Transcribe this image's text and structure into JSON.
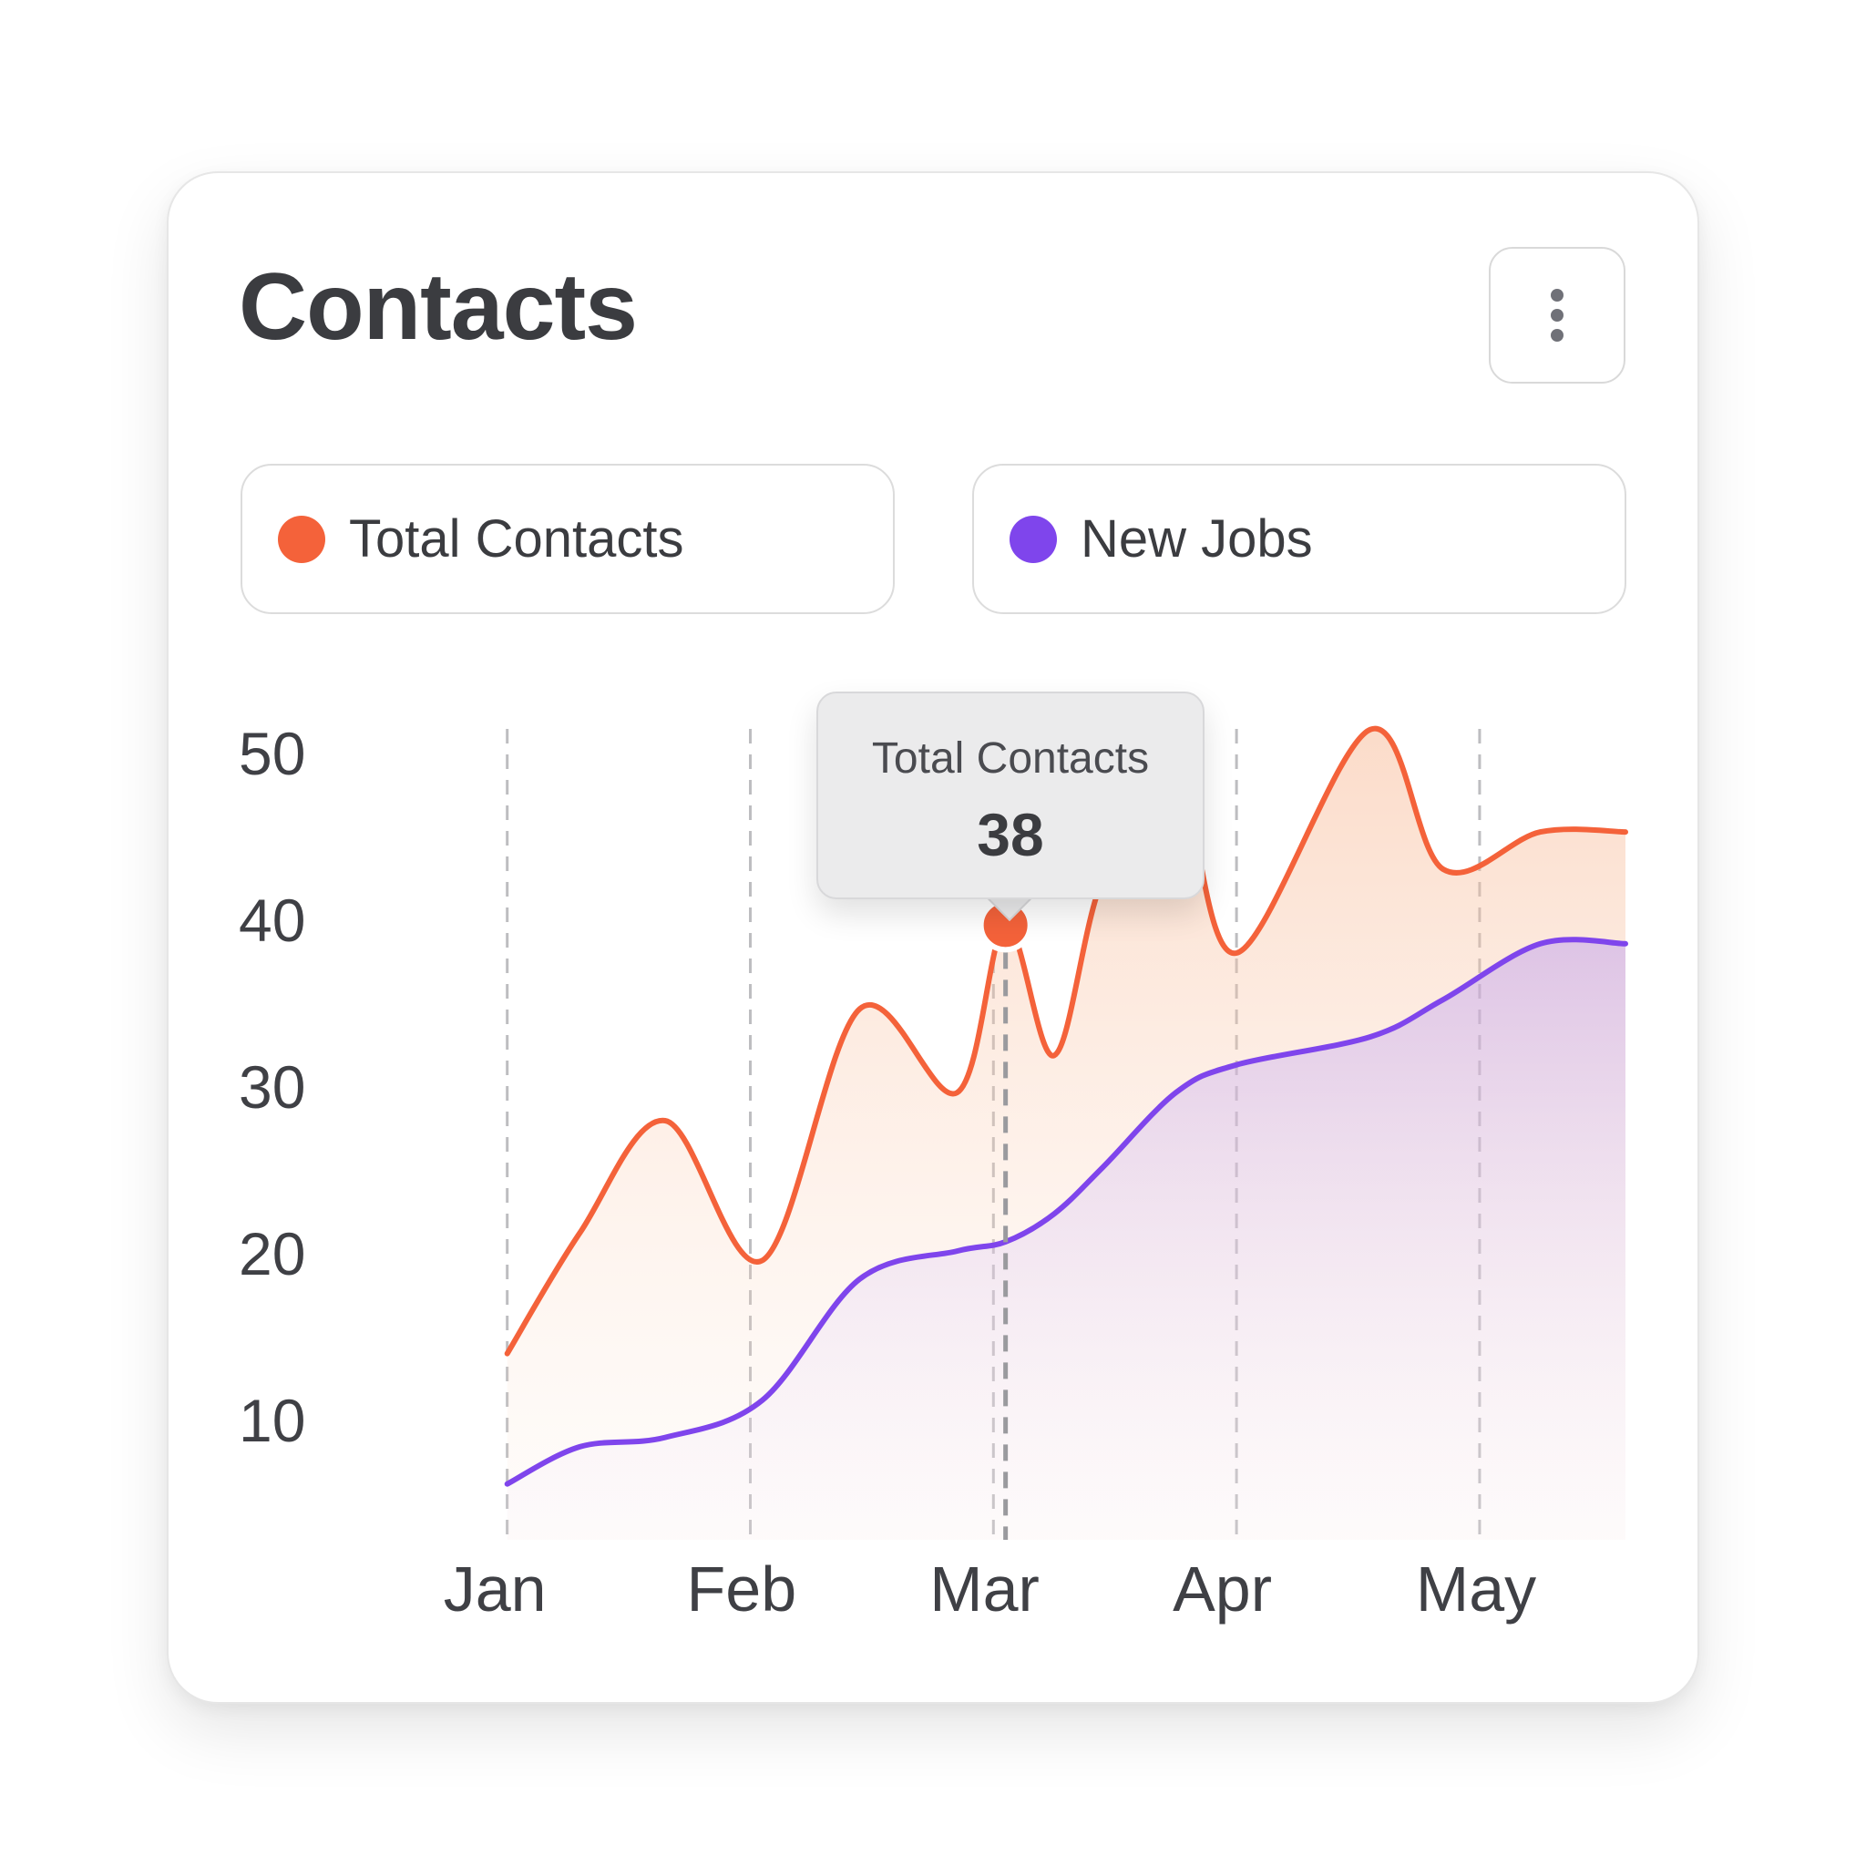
{
  "card": {
    "title": "Contacts",
    "menu_icon": "more-vertical-icon"
  },
  "legend": [
    {
      "label": "Total Contacts",
      "color": "#f4623a"
    },
    {
      "label": "New Jobs",
      "color": "#7f45ec"
    }
  ],
  "tooltip": {
    "label": "Total Contacts",
    "value": "38"
  },
  "colors": {
    "total_contacts": "#f4623a",
    "new_jobs": "#7f45ec",
    "text": "#3b3c40",
    "tooltip_bg": "#ebebec"
  },
  "chart_data": {
    "type": "area",
    "x": [
      0.0,
      0.3,
      0.65,
      1.05,
      1.45,
      1.85,
      2.05,
      2.25,
      2.45,
      2.75,
      3.0,
      3.55,
      3.85,
      4.25,
      4.6
    ],
    "series": [
      {
        "name": "Total Contacts",
        "values": [
          15.0,
          21.5,
          27.5,
          20.0,
          33.5,
          29.0,
          38.0,
          31.0,
          40.5,
          46.0,
          36.5,
          48.5,
          41.0,
          43.0,
          43.0
        ]
      },
      {
        "name": "New Jobs",
        "values": [
          8.0,
          10.0,
          10.5,
          12.5,
          19.0,
          20.5,
          21.0,
          22.5,
          25.0,
          29.0,
          30.5,
          32.0,
          34.0,
          37.0,
          37.0
        ]
      }
    ],
    "x_ticks": [
      {
        "label": "Jan",
        "x": 0
      },
      {
        "label": "Feb",
        "x": 1
      },
      {
        "label": "Mar",
        "x": 2
      },
      {
        "label": "Apr",
        "x": 3
      },
      {
        "label": "May",
        "x": 4
      }
    ],
    "y_ticks": [
      50,
      40,
      30,
      20,
      10
    ],
    "xlim": [
      -0.25,
      4.6
    ],
    "ylim": [
      5,
      50
    ],
    "grid": "vertical dashed",
    "legend_position": "top",
    "highlight": {
      "series": "Total Contacts",
      "x": 2.05,
      "value": 38
    }
  }
}
